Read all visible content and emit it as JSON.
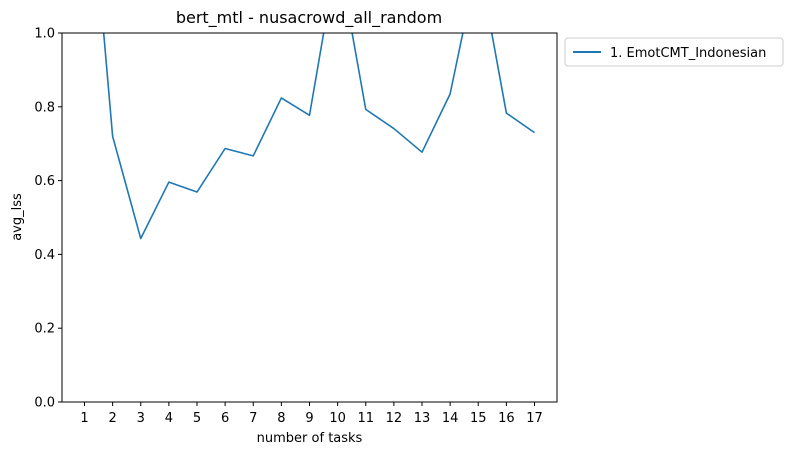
{
  "chart_data": {
    "type": "line",
    "title": "bert_mtl - nusacrowd_all_random",
    "xlabel": "number of tasks",
    "ylabel": "avg_lss",
    "x": [
      1,
      2,
      3,
      4,
      5,
      6,
      7,
      8,
      9,
      10,
      11,
      12,
      13,
      14,
      15,
      16,
      17
    ],
    "xlim": [
      0.2,
      17.8
    ],
    "ylim": [
      0.0,
      1.0
    ],
    "yticks": [
      "0.0",
      "0.2",
      "0.4",
      "0.6",
      "0.8",
      "1.0"
    ],
    "xticks": [
      "1",
      "2",
      "3",
      "4",
      "5",
      "6",
      "7",
      "8",
      "9",
      "10",
      "11",
      "12",
      "13",
      "14",
      "15",
      "16",
      "17"
    ],
    "grid": false,
    "legend_position": "outside-top-right",
    "series": [
      {
        "name": "1. EmotCMT_Indonesian",
        "color": "#1f77b4",
        "values": [
          1.6,
          0.72,
          0.443,
          0.596,
          0.569,
          0.687,
          0.667,
          0.824,
          0.777,
          1.22,
          0.793,
          0.741,
          0.677,
          0.835,
          1.2,
          0.783,
          0.73
        ]
      }
    ]
  }
}
